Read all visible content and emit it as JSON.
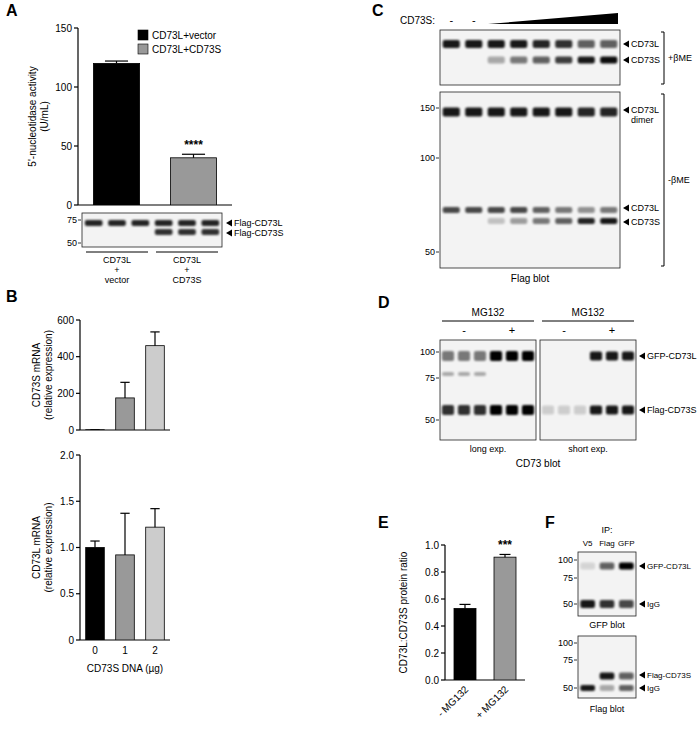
{
  "panel_labels": [
    "A",
    "B",
    "C",
    "D",
    "E",
    "F"
  ],
  "chart_data": [
    {
      "type": "bar",
      "ylabel": [
        "5'-nucleotidase activity",
        "(U/mL)"
      ],
      "categories": [
        null
      ],
      "series": [
        {
          "name": "CD73L+vector",
          "color": "#000000",
          "values": [
            120
          ],
          "errors": [
            2
          ]
        },
        {
          "name": "CD73L+CD73S",
          "color": "#999999",
          "values": [
            40
          ],
          "errors": [
            3
          ]
        }
      ],
      "ylim": [
        0,
        150
      ],
      "yticks": [
        0,
        50,
        100,
        150
      ],
      "legend": "top-right",
      "tick_labels": "y",
      "annotations": [
        {
          "text": "****",
          "at": "CD73L+CD73S"
        }
      ]
    },
    {
      "type": "bar",
      "ylabel": [
        "CD73S mRNA",
        "(relative expression)"
      ],
      "categories": [
        null,
        null,
        null
      ],
      "values": [
        1,
        175,
        460
      ],
      "errors": [
        0,
        85,
        75
      ],
      "colors": [
        "#000000",
        "#999999",
        "#cccccc"
      ],
      "ylim": [
        0,
        600
      ],
      "yticks": [
        0,
        200,
        400,
        600
      ],
      "tick_labels": "y"
    },
    {
      "type": "bar",
      "ylabel": [
        "CD73L mRNA",
        "(relative expression)"
      ],
      "categories": [
        "0",
        "1",
        "2"
      ],
      "xlabel": "CD73S DNA (µg)",
      "values": [
        1.0,
        0.92,
        1.22
      ],
      "errors": [
        0.07,
        0.45,
        0.2
      ],
      "colors": [
        "#000000",
        "#999999",
        "#cccccc"
      ],
      "ylim": [
        0,
        2
      ],
      "yticks": [
        0,
        0.5,
        {
          "value": 1,
          "label": "1.0"
        },
        1.5,
        {
          "value": 2,
          "label": "2.0"
        }
      ]
    },
    {
      "type": "bar",
      "ylabel": [
        "CD73L:CD73S protein ratio"
      ],
      "categories": [
        "- MG132",
        "+ MG132"
      ],
      "values": [
        0.53,
        0.91
      ],
      "errors": [
        0.03,
        0.02
      ],
      "colors": [
        "#000000",
        "#999999"
      ],
      "ylim": [
        0,
        1
      ],
      "yticks": [
        {
          "value": 0,
          "label": "0.0"
        },
        0.2,
        0.4,
        0.6,
        0.8,
        {
          "value": 1,
          "label": "1.0"
        }
      ],
      "annotations": [
        {
          "text": "***",
          "at": "+ MG132"
        }
      ]
    }
  ],
  "blots": {
    "A": {
      "markers": [
        75,
        50
      ],
      "bands": [
        "Flag-CD73L",
        "Flag-CD73S"
      ],
      "groups": [
        [
          "CD73L",
          "+",
          "vector"
        ],
        [
          "CD73L",
          "+",
          "CD73S"
        ]
      ]
    },
    "C": {
      "header": "CD73S:",
      "lanes": [
        "-",
        "-"
      ],
      "upper": {
        "bands": [
          "CD73L",
          "CD73S"
        ],
        "condition": "+βME"
      },
      "lower": {
        "markers": [
          150,
          100,
          50
        ],
        "bands": [
          [
            "CD73L",
            "dimer"
          ],
          "CD73L",
          "CD73S"
        ],
        "condition": "-βME"
      },
      "caption": "Flag blot"
    },
    "D": {
      "groups": [
        "MG132",
        "MG132"
      ],
      "lanes": [
        "-",
        "+",
        "-",
        "+"
      ],
      "markers": [
        100,
        75,
        50
      ],
      "bands": [
        "GFP-CD73L",
        "Flag-CD73S"
      ],
      "exposures": [
        "long exp.",
        "short exp."
      ],
      "caption": "CD73 blot"
    },
    "F": {
      "header": "IP:",
      "lanes": [
        "V5",
        "Flag",
        "GFP"
      ],
      "upper": {
        "markers": [
          100,
          75,
          50
        ],
        "bands": [
          "GFP-CD73L",
          "IgG"
        ],
        "caption": "GFP blot"
      },
      "lower": {
        "markers": [
          100,
          75,
          50
        ],
        "bands": [
          "Flag-CD73S",
          "IgG"
        ],
        "caption": "Flag blot"
      }
    }
  }
}
